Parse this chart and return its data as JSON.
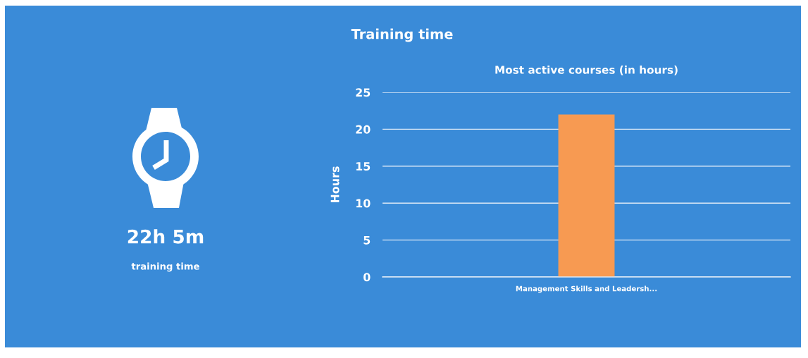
{
  "chart_data": [
    {
      "type": "other",
      "title": "Training time",
      "annotations": [
        "22h 5m",
        "training time"
      ]
    },
    {
      "type": "bar",
      "title": "Most active courses (in hours)",
      "ylabel": "Hours",
      "categories": [
        "Management Skills and Leadersh..."
      ],
      "values": [
        22
      ],
      "color": "#f79a52",
      "ylim": [
        0,
        25
      ],
      "yticks": [
        0,
        5,
        10,
        15,
        20,
        25
      ],
      "grid": "y"
    }
  ]
}
